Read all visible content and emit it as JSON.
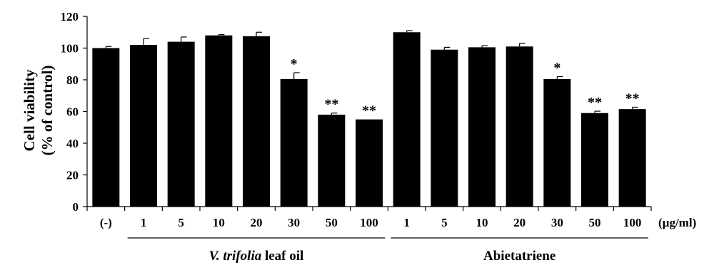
{
  "chart_data": {
    "type": "bar",
    "ylabel_lines": [
      "Cell viability",
      "(% of control)"
    ],
    "ylim": [
      0,
      120
    ],
    "yticks": [
      0,
      20,
      40,
      60,
      80,
      100,
      120
    ],
    "unit_label": "(µg/ml)",
    "grid": false,
    "categories": [
      "(-)",
      "1",
      "5",
      "10",
      "20",
      "30",
      "50",
      "100",
      "1",
      "5",
      "10",
      "20",
      "30",
      "50",
      "100"
    ],
    "values": [
      100,
      102,
      104,
      108,
      107.5,
      80.5,
      58,
      55,
      110,
      99,
      100.5,
      101,
      80.5,
      59,
      61.5
    ],
    "errors": [
      1,
      4,
      3,
      0.5,
      2.5,
      4,
      1,
      0,
      1,
      1.5,
      1,
      2,
      1.5,
      1.2,
      1.2
    ],
    "significance": [
      "",
      "",
      "",
      "",
      "",
      "*",
      "**",
      "**",
      "",
      "",
      "",
      "",
      "*",
      "**",
      "**"
    ],
    "groups": [
      {
        "name_italic": "V. trifolia",
        "name_rest": " leaf oil",
        "start_index": 1,
        "end_index": 7
      },
      {
        "name_italic": "",
        "name_rest": "Abietatriene",
        "start_index": 8,
        "end_index": 14
      }
    ],
    "bar_color": "#000000"
  }
}
